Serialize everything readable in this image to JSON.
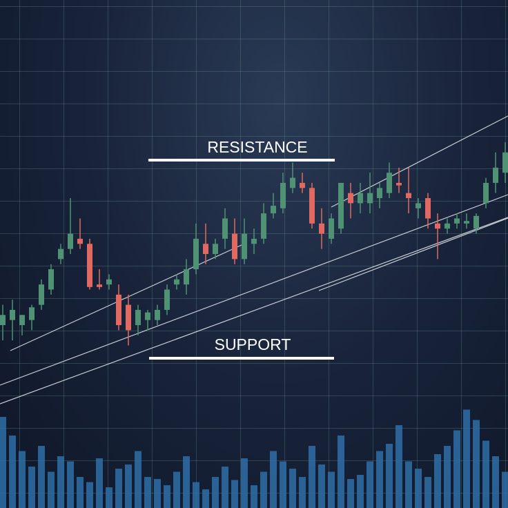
{
  "chart_data": {
    "type": "candlestick",
    "annotations": [
      "RESISTANCE",
      "SUPPORT"
    ],
    "open": [
      36,
      37,
      36,
      37,
      40,
      43,
      49,
      51,
      53,
      52,
      44,
      44,
      42,
      40,
      36,
      37,
      37,
      39,
      44,
      44,
      47,
      52,
      50,
      53,
      54,
      49,
      52,
      53,
      58,
      59,
      63,
      64,
      63,
      56,
      53,
      55,
      62,
      60,
      60,
      61,
      62,
      64,
      62,
      59,
      61,
      56,
      55,
      56,
      56,
      55,
      60,
      64,
      66
    ],
    "high": [
      40,
      41,
      38,
      40,
      45,
      48,
      52,
      61,
      57,
      53,
      47,
      46,
      44,
      42,
      40,
      39,
      40,
      44,
      46,
      49,
      56,
      56,
      53,
      59,
      57,
      57,
      55,
      60,
      62,
      66,
      68,
      66,
      64,
      59,
      58,
      64,
      64,
      64,
      66,
      64,
      68,
      67,
      67,
      61,
      62,
      58,
      57,
      58,
      58,
      58,
      65,
      70,
      72
    ],
    "low": [
      33,
      33,
      34,
      35,
      39,
      42,
      48,
      50,
      51,
      43,
      43,
      43,
      35,
      32,
      34,
      35,
      36,
      38,
      43,
      42,
      46,
      48,
      49,
      51,
      48,
      48,
      50,
      52,
      57,
      58,
      62,
      62,
      55,
      51,
      52,
      54,
      57,
      58,
      58,
      59,
      61,
      62,
      58,
      57,
      55,
      49,
      54,
      55,
      55,
      54,
      59,
      62,
      64
    ],
    "close": [
      38,
      39,
      38,
      39.5,
      44,
      47,
      51,
      54,
      52,
      43.5,
      43.5,
      45,
      36,
      35,
      39,
      38.5,
      39,
      43,
      45,
      47,
      53,
      50,
      52,
      57,
      49,
      54,
      53,
      58,
      59.5,
      64,
      65,
      63,
      56,
      54,
      57,
      64,
      60,
      62,
      62,
      63,
      66,
      63.5,
      61,
      60,
      57,
      55,
      56,
      57,
      56.5,
      57.5,
      64,
      67,
      70
    ],
    "volume": [
      88,
      70,
      55,
      40,
      60,
      35,
      50,
      45,
      30,
      25,
      48,
      20,
      38,
      42,
      55,
      30,
      28,
      22,
      35,
      50,
      25,
      18,
      30,
      40,
      27,
      48,
      22,
      35,
      55,
      45,
      38,
      30,
      60,
      42,
      35,
      70,
      28,
      32,
      45,
      55,
      62,
      80,
      45,
      38,
      30,
      52,
      60,
      75,
      95,
      85,
      65,
      50,
      35
    ],
    "up_color": "#4f9274",
    "down_color": "#e06a62",
    "volume_color": "#2f6fa8",
    "ylim": [
      0,
      100
    ],
    "y2lim": [
      0,
      100
    ]
  }
}
